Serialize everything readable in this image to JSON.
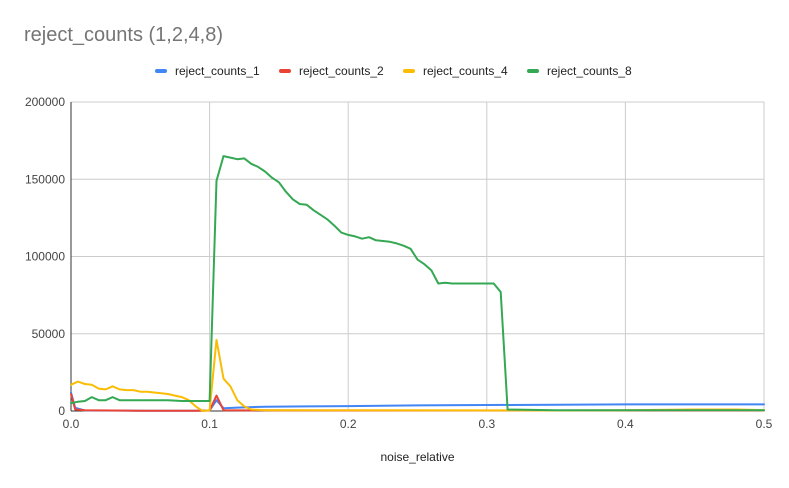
{
  "chart_data": {
    "type": "line",
    "title": "reject_counts (1,2,4,8)",
    "xlabel": "noise_relative",
    "ylabel": "",
    "xlim": [
      0,
      0.5
    ],
    "ylim": [
      0,
      200000
    ],
    "x_ticks": [
      "0.0",
      "0.1",
      "0.2",
      "0.3",
      "0.4",
      "0.5"
    ],
    "y_ticks": [
      "0",
      "50000",
      "100000",
      "150000",
      "200000"
    ],
    "grid": true,
    "legend_position": "top",
    "series": [
      {
        "name": "reject_counts_1",
        "color": "#4285F4",
        "points": [
          [
            0.0,
            12000
          ],
          [
            0.003,
            2000
          ],
          [
            0.01,
            300
          ],
          [
            0.05,
            200
          ],
          [
            0.09,
            200
          ],
          [
            0.1,
            300
          ],
          [
            0.105,
            7000
          ],
          [
            0.11,
            1800
          ],
          [
            0.12,
            2200
          ],
          [
            0.14,
            2800
          ],
          [
            0.17,
            3000
          ],
          [
            0.2,
            3200
          ],
          [
            0.25,
            3600
          ],
          [
            0.3,
            3900
          ],
          [
            0.35,
            4000
          ],
          [
            0.4,
            4300
          ],
          [
            0.45,
            4300
          ],
          [
            0.5,
            4300
          ]
        ]
      },
      {
        "name": "reject_counts_2",
        "color": "#EA4335",
        "points": [
          [
            0.0,
            11000
          ],
          [
            0.003,
            1000
          ],
          [
            0.01,
            500
          ],
          [
            0.05,
            200
          ],
          [
            0.09,
            200
          ],
          [
            0.1,
            300
          ],
          [
            0.105,
            10000
          ],
          [
            0.11,
            500
          ],
          [
            0.15,
            400
          ],
          [
            0.3,
            300
          ],
          [
            0.5,
            300
          ]
        ]
      },
      {
        "name": "reject_counts_4",
        "color": "#FBBC04",
        "points": [
          [
            0.0,
            17000
          ],
          [
            0.005,
            19000
          ],
          [
            0.01,
            17500
          ],
          [
            0.015,
            17000
          ],
          [
            0.02,
            14500
          ],
          [
            0.025,
            14000
          ],
          [
            0.03,
            16000
          ],
          [
            0.035,
            14000
          ],
          [
            0.04,
            13500
          ],
          [
            0.045,
            13500
          ],
          [
            0.05,
            12500
          ],
          [
            0.055,
            12500
          ],
          [
            0.06,
            12000
          ],
          [
            0.065,
            11500
          ],
          [
            0.07,
            11000
          ],
          [
            0.075,
            10000
          ],
          [
            0.08,
            9000
          ],
          [
            0.085,
            7000
          ],
          [
            0.09,
            3000
          ],
          [
            0.095,
            0
          ],
          [
            0.1,
            500
          ],
          [
            0.105,
            46000
          ],
          [
            0.11,
            21000
          ],
          [
            0.115,
            16000
          ],
          [
            0.12,
            7000
          ],
          [
            0.125,
            3000
          ],
          [
            0.13,
            1000
          ],
          [
            0.14,
            500
          ],
          [
            0.2,
            500
          ],
          [
            0.3,
            400
          ],
          [
            0.35,
            300
          ],
          [
            0.4,
            500
          ],
          [
            0.45,
            1000
          ],
          [
            0.48,
            1000
          ],
          [
            0.5,
            500
          ]
        ]
      },
      {
        "name": "reject_counts_8",
        "color": "#34A853",
        "points": [
          [
            0.0,
            5000
          ],
          [
            0.005,
            6000
          ],
          [
            0.01,
            6500
          ],
          [
            0.015,
            9000
          ],
          [
            0.02,
            7000
          ],
          [
            0.025,
            7000
          ],
          [
            0.03,
            9000
          ],
          [
            0.035,
            7000
          ],
          [
            0.04,
            7000
          ],
          [
            0.05,
            7000
          ],
          [
            0.06,
            7000
          ],
          [
            0.07,
            7000
          ],
          [
            0.08,
            6500
          ],
          [
            0.09,
            6500
          ],
          [
            0.1,
            6500
          ],
          [
            0.105,
            149000
          ],
          [
            0.11,
            165000
          ],
          [
            0.115,
            164000
          ],
          [
            0.12,
            163000
          ],
          [
            0.125,
            163500
          ],
          [
            0.13,
            160000
          ],
          [
            0.135,
            158000
          ],
          [
            0.14,
            155000
          ],
          [
            0.145,
            151000
          ],
          [
            0.15,
            148000
          ],
          [
            0.155,
            142000
          ],
          [
            0.16,
            137000
          ],
          [
            0.165,
            134000
          ],
          [
            0.17,
            133500
          ],
          [
            0.175,
            130000
          ],
          [
            0.18,
            127000
          ],
          [
            0.185,
            124000
          ],
          [
            0.19,
            120000
          ],
          [
            0.195,
            115500
          ],
          [
            0.2,
            114000
          ],
          [
            0.205,
            113000
          ],
          [
            0.21,
            111500
          ],
          [
            0.215,
            112500
          ],
          [
            0.22,
            110500
          ],
          [
            0.225,
            110000
          ],
          [
            0.23,
            109500
          ],
          [
            0.235,
            108500
          ],
          [
            0.24,
            107000
          ],
          [
            0.245,
            105000
          ],
          [
            0.25,
            98000
          ],
          [
            0.255,
            95000
          ],
          [
            0.26,
            91000
          ],
          [
            0.265,
            82500
          ],
          [
            0.27,
            83000
          ],
          [
            0.275,
            82500
          ],
          [
            0.3,
            82500
          ],
          [
            0.305,
            82500
          ],
          [
            0.31,
            77000
          ],
          [
            0.315,
            1000
          ],
          [
            0.35,
            500
          ],
          [
            0.4,
            500
          ],
          [
            0.5,
            500
          ]
        ]
      }
    ]
  }
}
